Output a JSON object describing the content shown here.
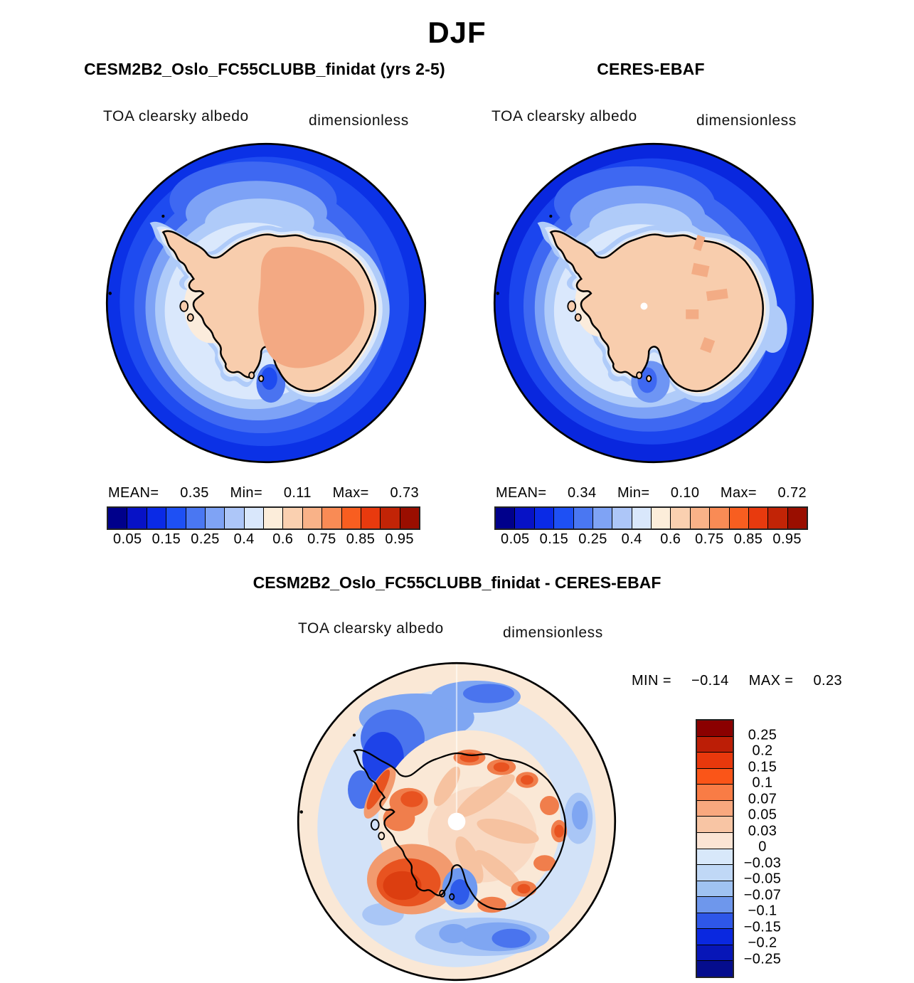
{
  "title": "DJF",
  "panels": {
    "model": {
      "title": "CESM2B2_Oslo_FC55CLUBB_finidat (yrs 2-5)",
      "variable": "TOA clearsky albedo",
      "units": "dimensionless",
      "stats": {
        "mean_label": "MEAN=",
        "mean": "0.35",
        "min_label": "Min=",
        "min": "0.11",
        "max_label": "Max=",
        "max": "0.73"
      }
    },
    "obs": {
      "title": "CERES-EBAF",
      "variable": "TOA clearsky albedo",
      "units": "dimensionless",
      "stats": {
        "mean_label": "MEAN=",
        "mean": "0.34",
        "min_label": "Min=",
        "min": "0.10",
        "max_label": "Max=",
        "max": "0.72"
      }
    },
    "diff": {
      "title": "CESM2B2_Oslo_FC55CLUBB_finidat - CERES-EBAF",
      "variable": "TOA clearsky albedo",
      "units": "dimensionless",
      "stats": {
        "min_label": "MIN =",
        "min": "−0.14",
        "max_label": "MAX =",
        "max": "0.23"
      }
    }
  },
  "colorbars": {
    "albedo": {
      "orientation": "horizontal",
      "colors": [
        "#00008B",
        "#0712C6",
        "#0A2AE6",
        "#1E50F4",
        "#4A77F2",
        "#7FA3F5",
        "#ADC6F8",
        "#D9E7FB",
        "#FCEDDA",
        "#FAD0B0",
        "#F9B288",
        "#F98B55",
        "#F85E20",
        "#E83A0E",
        "#C22406",
        "#9A0E00"
      ],
      "tick_labels": [
        "0.05",
        "0.15",
        "0.25",
        "0.4",
        "0.6",
        "0.75",
        "0.85",
        "0.95"
      ],
      "tick_positions": [
        1,
        3,
        5,
        7,
        9,
        11,
        13,
        15
      ]
    },
    "difference": {
      "orientation": "vertical",
      "colors": [
        "#8B0000",
        "#BC1E06",
        "#E8380C",
        "#FA5518",
        "#F97C45",
        "#F9A87E",
        "#F8C5A4",
        "#FBE4D4",
        "#D8E8FA",
        "#C0D8F6",
        "#9FC2F2",
        "#6E97EC",
        "#2E57E8",
        "#0A28E0",
        "#0716B8",
        "#050D8E"
      ],
      "tick_labels": [
        "0.25",
        "0.2",
        "0.15",
        "0.1",
        "0.07",
        "0.05",
        "0.03",
        "0",
        "−0.03",
        "−0.05",
        "−0.07",
        "−0.1",
        "−0.15",
        "−0.2",
        "−0.25"
      ],
      "tick_positions": [
        1,
        2,
        3,
        4,
        5,
        6,
        7,
        8,
        9,
        10,
        11,
        12,
        13,
        14,
        15
      ]
    }
  },
  "chart_data": [
    {
      "type": "heatmap",
      "season": "DJF",
      "title": "CESM2B2_Oslo_FC55CLUBB_finidat (yrs 2-5)",
      "variable": "TOA clearsky albedo",
      "units": "dimensionless",
      "projection": "south polar stereographic",
      "mean": 0.35,
      "min": 0.11,
      "max": 0.73,
      "contour_levels": [
        0.05,
        0.1,
        0.15,
        0.2,
        0.25,
        0.3,
        0.4,
        0.5,
        0.6,
        0.7,
        0.75,
        0.8,
        0.85,
        0.9,
        0.95
      ],
      "labeled_levels": [
        0.05,
        0.15,
        0.25,
        0.4,
        0.6,
        0.75,
        0.85,
        0.95
      ],
      "palette": "blue-to-red diverging, 16 bins",
      "legend_position": "below map"
    },
    {
      "type": "heatmap",
      "season": "DJF",
      "title": "CERES-EBAF",
      "variable": "TOA clearsky albedo",
      "units": "dimensionless",
      "projection": "south polar stereographic",
      "mean": 0.34,
      "min": 0.1,
      "max": 0.72,
      "contour_levels": [
        0.05,
        0.1,
        0.15,
        0.2,
        0.25,
        0.3,
        0.4,
        0.5,
        0.6,
        0.7,
        0.75,
        0.8,
        0.85,
        0.9,
        0.95
      ],
      "labeled_levels": [
        0.05,
        0.15,
        0.25,
        0.4,
        0.6,
        0.75,
        0.85,
        0.95
      ],
      "palette": "blue-to-red diverging, 16 bins",
      "legend_position": "below map"
    },
    {
      "type": "heatmap",
      "season": "DJF",
      "title": "CESM2B2_Oslo_FC55CLUBB_finidat - CERES-EBAF",
      "variable": "TOA clearsky albedo difference",
      "units": "dimensionless",
      "projection": "south polar stereographic",
      "min": -0.14,
      "max": 0.23,
      "contour_levels": [
        -0.25,
        -0.2,
        -0.15,
        -0.1,
        -0.07,
        -0.05,
        -0.03,
        0,
        0.03,
        0.05,
        0.07,
        0.1,
        0.15,
        0.2,
        0.25
      ],
      "palette": "blue-to-red diverging, 16 bins",
      "legend_position": "right of map, vertical"
    }
  ]
}
